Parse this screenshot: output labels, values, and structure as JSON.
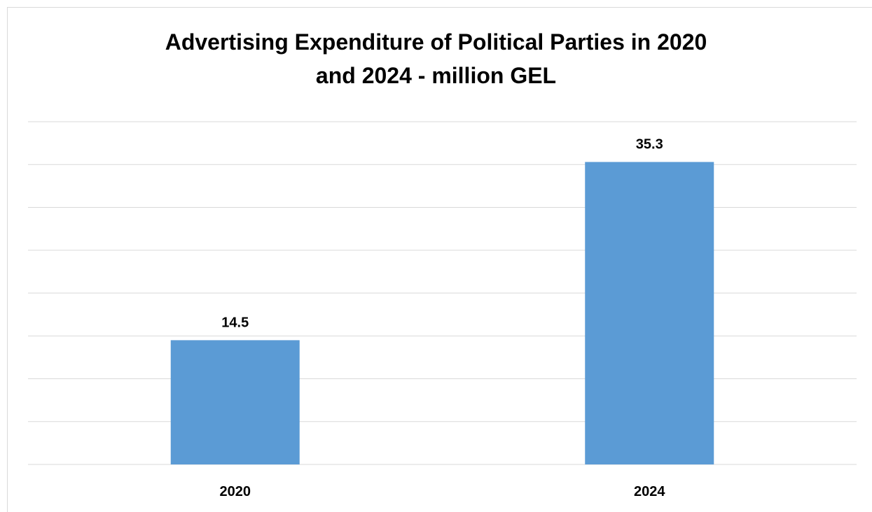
{
  "chart_data": {
    "type": "bar",
    "title": "Advertising Expenditure of Political Parties in 2020 and 2024 - million GEL",
    "title_lines": [
      "Advertising Expenditure of Political Parties in 2020",
      "and 2024 - million GEL"
    ],
    "categories": [
      "2020",
      "2024"
    ],
    "values": [
      14.5,
      35.3
    ],
    "data_labels": [
      "14.5",
      "35.3"
    ],
    "xlabel": "",
    "ylabel": "",
    "ylim": [
      0,
      40
    ],
    "grid": true,
    "legend": "none",
    "bar_color": "#5b9bd5",
    "gridline_color": "#d9d9d9"
  }
}
